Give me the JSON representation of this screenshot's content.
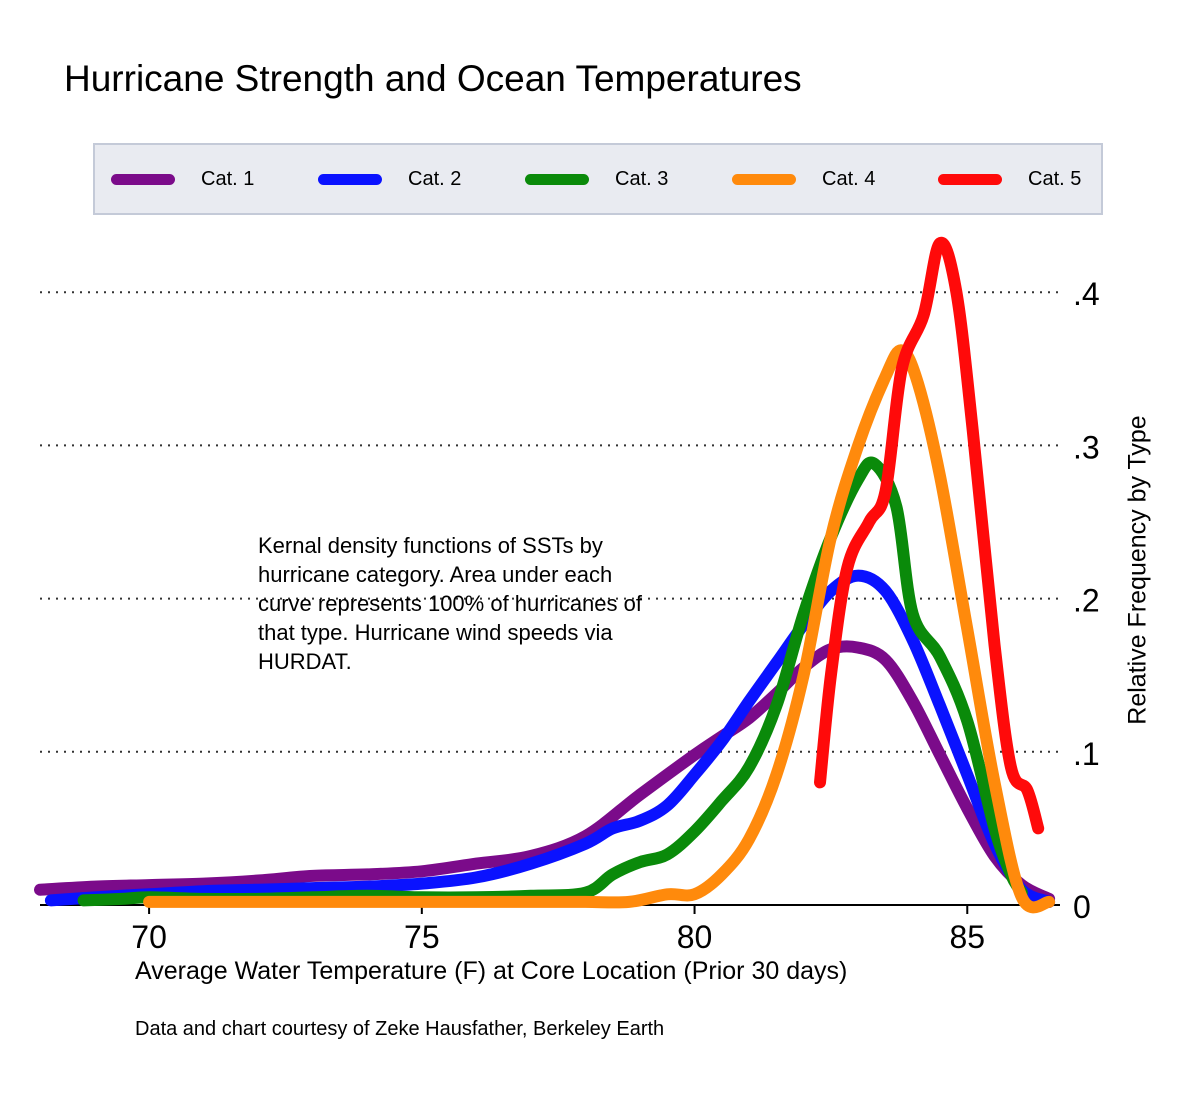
{
  "chart_data": {
    "type": "line",
    "title": "Hurricane Strength and Ocean Temperatures",
    "xlabel": "Average Water Temperature (F) at Core Location (Prior 30 days)",
    "ylabel": "Relative Frequency by Type",
    "xlim": [
      68,
      86.7
    ],
    "ylim": [
      0,
      0.44
    ],
    "xticks": [
      70,
      75,
      80,
      85
    ],
    "xtick_labels": [
      "70",
      "75",
      "80",
      "85"
    ],
    "yticks": [
      0,
      0.1,
      0.2,
      0.3,
      0.4
    ],
    "ytick_labels": [
      "0",
      ".1",
      ".2",
      ".3",
      ".4"
    ],
    "grid": "horizontal-dotted",
    "legend_position": "top",
    "annotation": "Kernal density functions of SSTs by hurricane category. Area under each curve represents 100% of hurricanes of that type. Hurricane wind speeds via HURDAT.",
    "credit": "Data and chart courtesy of Zeke Hausfather, Berkeley Earth",
    "series": [
      {
        "name": "Cat. 1",
        "color": "#7b0b8a",
        "points": [
          [
            68.0,
            0.01
          ],
          [
            69.0,
            0.012
          ],
          [
            70.0,
            0.013
          ],
          [
            71.0,
            0.014
          ],
          [
            72.0,
            0.016
          ],
          [
            73.0,
            0.019
          ],
          [
            74.0,
            0.02
          ],
          [
            75.0,
            0.022
          ],
          [
            76.0,
            0.027
          ],
          [
            77.0,
            0.032
          ],
          [
            78.0,
            0.045
          ],
          [
            79.0,
            0.072
          ],
          [
            80.0,
            0.098
          ],
          [
            80.5,
            0.11
          ],
          [
            81.0,
            0.122
          ],
          [
            81.5,
            0.138
          ],
          [
            82.0,
            0.155
          ],
          [
            82.5,
            0.167
          ],
          [
            83.0,
            0.168
          ],
          [
            83.5,
            0.16
          ],
          [
            84.0,
            0.133
          ],
          [
            84.5,
            0.098
          ],
          [
            85.0,
            0.063
          ],
          [
            85.5,
            0.032
          ],
          [
            86.0,
            0.013
          ],
          [
            86.5,
            0.004
          ]
        ]
      },
      {
        "name": "Cat. 2",
        "color": "#0a12ff",
        "points": [
          [
            68.2,
            0.003
          ],
          [
            69.0,
            0.005
          ],
          [
            70.0,
            0.007
          ],
          [
            71.0,
            0.009
          ],
          [
            72.0,
            0.01
          ],
          [
            73.0,
            0.011
          ],
          [
            74.0,
            0.012
          ],
          [
            75.0,
            0.014
          ],
          [
            76.0,
            0.018
          ],
          [
            77.0,
            0.027
          ],
          [
            78.0,
            0.04
          ],
          [
            78.5,
            0.05
          ],
          [
            79.0,
            0.055
          ],
          [
            79.5,
            0.065
          ],
          [
            80.0,
            0.085
          ],
          [
            80.5,
            0.107
          ],
          [
            81.0,
            0.133
          ],
          [
            81.5,
            0.158
          ],
          [
            82.0,
            0.183
          ],
          [
            82.5,
            0.205
          ],
          [
            83.0,
            0.215
          ],
          [
            83.5,
            0.205
          ],
          [
            84.0,
            0.173
          ],
          [
            84.5,
            0.13
          ],
          [
            85.0,
            0.085
          ],
          [
            85.5,
            0.04
          ],
          [
            86.0,
            0.01
          ],
          [
            86.5,
            0.002
          ]
        ]
      },
      {
        "name": "Cat. 3",
        "color": "#0a8a0a",
        "points": [
          [
            68.8,
            0.003
          ],
          [
            69.5,
            0.004
          ],
          [
            70.0,
            0.005
          ],
          [
            71.0,
            0.004
          ],
          [
            72.0,
            0.004
          ],
          [
            73.0,
            0.005
          ],
          [
            74.0,
            0.006
          ],
          [
            75.0,
            0.005
          ],
          [
            76.0,
            0.005
          ],
          [
            77.0,
            0.006
          ],
          [
            78.0,
            0.008
          ],
          [
            78.5,
            0.02
          ],
          [
            79.0,
            0.028
          ],
          [
            79.5,
            0.033
          ],
          [
            80.0,
            0.048
          ],
          [
            80.5,
            0.068
          ],
          [
            81.0,
            0.09
          ],
          [
            81.5,
            0.13
          ],
          [
            82.0,
            0.19
          ],
          [
            82.5,
            0.24
          ],
          [
            83.0,
            0.278
          ],
          [
            83.3,
            0.288
          ],
          [
            83.7,
            0.26
          ],
          [
            84.0,
            0.19
          ],
          [
            84.5,
            0.162
          ],
          [
            85.0,
            0.12
          ],
          [
            85.5,
            0.05
          ],
          [
            85.8,
            0.02
          ],
          [
            86.0,
            0.008
          ]
        ]
      },
      {
        "name": "Cat. 4",
        "color": "#ff8a0c",
        "points": [
          [
            70.0,
            0.002
          ],
          [
            71.0,
            0.002
          ],
          [
            72.0,
            0.002
          ],
          [
            73.0,
            0.002
          ],
          [
            74.0,
            0.002
          ],
          [
            75.0,
            0.002
          ],
          [
            76.0,
            0.002
          ],
          [
            77.0,
            0.002
          ],
          [
            78.0,
            0.002
          ],
          [
            78.8,
            0.002
          ],
          [
            79.5,
            0.007
          ],
          [
            80.0,
            0.007
          ],
          [
            80.5,
            0.02
          ],
          [
            81.0,
            0.043
          ],
          [
            81.5,
            0.085
          ],
          [
            82.0,
            0.15
          ],
          [
            82.5,
            0.24
          ],
          [
            83.0,
            0.3
          ],
          [
            83.5,
            0.345
          ],
          [
            83.8,
            0.362
          ],
          [
            84.1,
            0.34
          ],
          [
            84.5,
            0.28
          ],
          [
            85.0,
            0.18
          ],
          [
            85.5,
            0.08
          ],
          [
            86.0,
            0.005
          ],
          [
            86.5,
            0.002
          ]
        ]
      },
      {
        "name": "Cat. 5",
        "color": "#ff0a0a",
        "points": [
          [
            82.3,
            0.08
          ],
          [
            82.5,
            0.15
          ],
          [
            82.8,
            0.22
          ],
          [
            83.2,
            0.25
          ],
          [
            83.5,
            0.27
          ],
          [
            83.8,
            0.35
          ],
          [
            84.2,
            0.385
          ],
          [
            84.5,
            0.432
          ],
          [
            84.8,
            0.4
          ],
          [
            85.1,
            0.31
          ],
          [
            85.5,
            0.17
          ],
          [
            85.8,
            0.09
          ],
          [
            86.1,
            0.075
          ],
          [
            86.3,
            0.05
          ]
        ]
      }
    ]
  }
}
